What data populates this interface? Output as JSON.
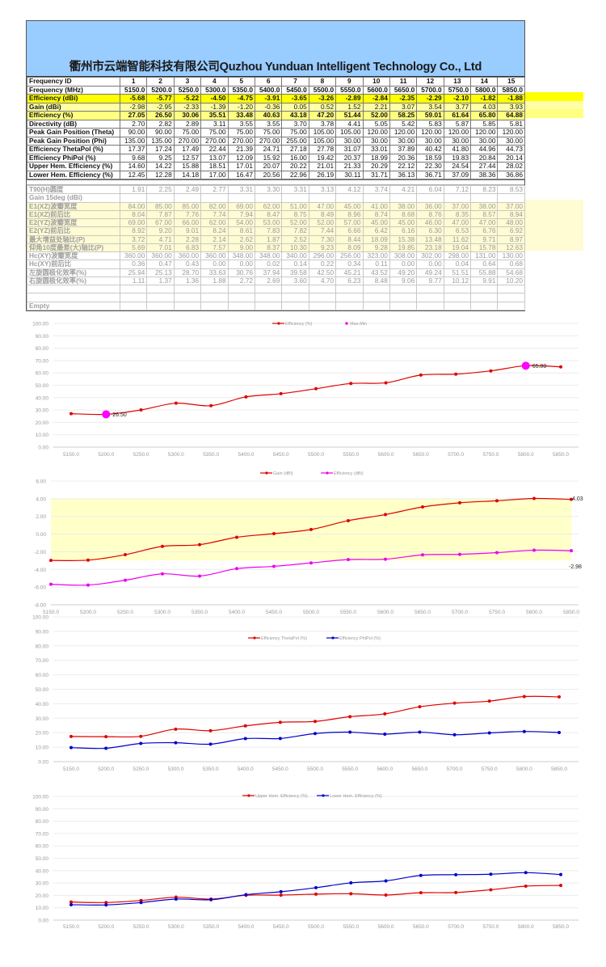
{
  "title": "衢州市云端智能科技有限公司Quzhou Yunduan Intelligent Technology Co., Ltd",
  "upper_table": [
    {
      "label": "Frequency ID",
      "values": [
        "1",
        "2",
        "3",
        "4",
        "5",
        "6",
        "7",
        "8",
        "9",
        "10",
        "11",
        "12",
        "13",
        "14",
        "15"
      ]
    },
    {
      "label": "Frequency  (MHz)",
      "values": [
        "5150.0",
        "5200.0",
        "5250.0",
        "5300.0",
        "5350.0",
        "5400.0",
        "5450.0",
        "5500.0",
        "5550.0",
        "5600.0",
        "5650.0",
        "5700.0",
        "5750.0",
        "5800.0",
        "5850.0"
      ]
    },
    {
      "label": "Efficiency (dBi)",
      "values": [
        "-5.68",
        "-5.77",
        "-5.22",
        "-4.50",
        "-4.75",
        "-3.91",
        "-3.65",
        "-3.26",
        "-2.89",
        "-2.84",
        "-2.35",
        "-2.29",
        "-2.10",
        "-1.82",
        "-1.88"
      ]
    },
    {
      "label": "Gain (dBi)",
      "values": [
        "-2.98",
        "-2.95",
        "-2.33",
        "-1.39",
        "-1.20",
        "-0.36",
        "0.05",
        "0.52",
        "1.52",
        "2.21",
        "3.07",
        "3.54",
        "3.77",
        "4.03",
        "3.93"
      ]
    },
    {
      "label": "Efficiency (%)",
      "values": [
        "27.05",
        "26.50",
        "30.06",
        "35.51",
        "33.48",
        "40.63",
        "43.18",
        "47.20",
        "51.44",
        "52.00",
        "58.25",
        "59.01",
        "61.64",
        "65.80",
        "64.88"
      ]
    },
    {
      "label": "Directivity (dB)",
      "values": [
        "2.70",
        "2.82",
        "2.89",
        "3.11",
        "3.55",
        "3.55",
        "3.70",
        "3.78",
        "4.41",
        "5.05",
        "5.42",
        "5.83",
        "5.87",
        "5.85",
        "5.81"
      ]
    },
    {
      "label": "Peak Gain Position (Theta)",
      "values": [
        "90.00",
        "90.00",
        "75.00",
        "75.00",
        "75.00",
        "75.00",
        "75.00",
        "105.00",
        "105.00",
        "120.00",
        "120.00",
        "120.00",
        "120.00",
        "120.00",
        "120.00"
      ]
    },
    {
      "label": "Peak Gain Position (Phi)",
      "values": [
        "135.00",
        "135.00",
        "270.00",
        "270.00",
        "270.00",
        "270.00",
        "255.00",
        "105.00",
        "30.00",
        "30.00",
        "30.00",
        "30.00",
        "30.00",
        "30.00",
        "30.00"
      ]
    },
    {
      "label": "Efficiency ThetaPol (%)",
      "values": [
        "17.37",
        "17.24",
        "17.49",
        "22.44",
        "21.39",
        "24.71",
        "27.18",
        "27.78",
        "31.07",
        "33.01",
        "37.89",
        "40.42",
        "41.80",
        "44.96",
        "44.73"
      ]
    },
    {
      "label": "Efficiency PhiPol (%)",
      "values": [
        "9.68",
        "9.25",
        "12.57",
        "13.07",
        "12.09",
        "15.92",
        "16.00",
        "19.42",
        "20.37",
        "18.99",
        "20.36",
        "18.59",
        "19.83",
        "20.84",
        "20.14"
      ]
    },
    {
      "label": "Upper Hem. Efficiency (%)",
      "values": [
        "14.60",
        "14.22",
        "15.88",
        "18.51",
        "17.01",
        "20.07",
        "20.22",
        "21.01",
        "21.33",
        "20.29",
        "22.12",
        "22.30",
        "24.54",
        "27.44",
        "28.02"
      ]
    },
    {
      "label": "Lower Hem. Efficiency (%)",
      "values": [
        "12.45",
        "12.28",
        "14.18",
        "17.00",
        "16.47",
        "20.56",
        "22.96",
        "26.19",
        "30.11",
        "31.71",
        "36.13",
        "36.71",
        "37.09",
        "38.36",
        "36.86"
      ]
    }
  ],
  "lower_table": [
    {
      "label": "T90(H)圆度",
      "values": [
        "1.91",
        "2.25",
        "2.49",
        "2.77",
        "3.31",
        "3.30",
        "3.31",
        "3.13",
        "4.12",
        "3.74",
        "4.21",
        "6.04",
        "7.12",
        "8.23",
        "8.53"
      ]
    },
    {
      "label": "Gain 15deg (dBi)",
      "values": [
        "",
        "",
        "",
        "",
        "",
        "",
        "",
        "",
        "",
        "",
        "",
        "",
        "",
        "",
        ""
      ]
    },
    {
      "label": "E1(XZ)波瓣宽度",
      "values": [
        "84.00",
        "85.00",
        "85.00",
        "82.00",
        "69.00",
        "62.00",
        "51.00",
        "47.00",
        "45.00",
        "41.00",
        "38.00",
        "36.00",
        "37.00",
        "38.00",
        "37.00"
      ]
    },
    {
      "label": "E1(XZ)前后比",
      "values": [
        "8.04",
        "7.87",
        "7.76",
        "7.74",
        "7.94",
        "8.47",
        "8.75",
        "8.49",
        "8.96",
        "8.74",
        "8.68",
        "8.76",
        "8.35",
        "8.57",
        "8.94"
      ]
    },
    {
      "label": "E2(YZ)波瓣宽度",
      "values": [
        "69.00",
        "67.00",
        "66.00",
        "62.00",
        "54.00",
        "53.00",
        "52.00",
        "52.00",
        "57.00",
        "45.00",
        "45.00",
        "46.00",
        "47.00",
        "47.00",
        "48.00"
      ]
    },
    {
      "label": "E2(YZ)前后比",
      "values": [
        "8.92",
        "9.20",
        "9.01",
        "8.24",
        "8.61",
        "7.83",
        "7.82",
        "7.44",
        "6.66",
        "6.42",
        "6.16",
        "6.30",
        "6.53",
        "6.76",
        "6.92"
      ]
    },
    {
      "label": "最大增益处轴比(P)",
      "values": [
        "3.72",
        "4.71",
        "2.28",
        "2.14",
        "2.62",
        "1.87",
        "2.52",
        "7.30",
        "8.44",
        "18.09",
        "15.38",
        "13.48",
        "11.62",
        "9.71",
        "8.97"
      ]
    },
    {
      "label": "仰角10度最差(大)轴比(P)",
      "values": [
        "5.69",
        "7.01",
        "6.83",
        "7.57",
        "9.00",
        "8.37",
        "10.30",
        "9.23",
        "8.09",
        "9.28",
        "19.85",
        "23.18",
        "19.04",
        "15.78",
        "12.63"
      ]
    },
    {
      "label": "Hc(XY)波瓣宽度",
      "values": [
        "360.00",
        "360.00",
        "360.00",
        "360.00",
        "348.00",
        "348.00",
        "340.00",
        "296.00",
        "256.00",
        "323.00",
        "308.00",
        "302.00",
        "298.00",
        "131.00",
        "130.00"
      ]
    },
    {
      "label": "Hc(XY)前后比",
      "values": [
        "0.36",
        "0.47",
        "0.43",
        "0.00",
        "0.00",
        "0.02",
        "0.14",
        "0.22",
        "0.34",
        "0.11",
        "0.00",
        "0.00",
        "0.04",
        "0.64",
        "0.68"
      ]
    },
    {
      "label": "左旋圆极化效率(%)",
      "values": [
        "25.94",
        "25.13",
        "28.70",
        "33.63",
        "30.76",
        "37.94",
        "39.58",
        "42.50",
        "45.21",
        "43.52",
        "49.20",
        "49.24",
        "51.51",
        "55.88",
        "54.68"
      ]
    },
    {
      "label": "右旋圆极化效率(%)",
      "values": [
        "1.11",
        "1.37",
        "1.36",
        "1.88",
        "2.72",
        "2.69",
        "3.60",
        "4.70",
        "6.23",
        "8.48",
        "9.06",
        "9.77",
        "10.12",
        "9.91",
        "10.20"
      ]
    },
    {
      "label": "",
      "values": [
        "",
        "",
        "",
        "",
        "",
        "",
        "",
        "",
        "",
        "",
        "",
        "",
        "",
        "",
        ""
      ]
    },
    {
      "label": "",
      "values": [
        "",
        "",
        "",
        "",
        "",
        "",
        "",
        "",
        "",
        "",
        "",
        "",
        "",
        "",
        ""
      ]
    },
    {
      "label": "Empty",
      "values": [
        "",
        "",
        "",
        "",
        "",
        "",
        "",
        "",
        "",
        "",
        "",
        "",
        "",
        "",
        ""
      ]
    }
  ],
  "chart_data": [
    {
      "type": "line",
      "title": "",
      "categories": [
        "5150.0",
        "5200.0",
        "5250.0",
        "5300.0",
        "5350.0",
        "5400.0",
        "5450.0",
        "5500.0",
        "5550.0",
        "5600.0",
        "5650.0",
        "5700.0",
        "5750.0",
        "5800.0",
        "5850.0"
      ],
      "ylim": [
        0,
        100
      ],
      "y_step": 10,
      "y_decimals": 2,
      "series": [
        {
          "name": "Efficiency (%)",
          "color": "#e00000",
          "values": [
            27.05,
            26.5,
            30.06,
            35.51,
            33.48,
            40.63,
            43.18,
            47.2,
            51.44,
            52.0,
            58.25,
            59.01,
            61.64,
            65.8,
            64.88
          ]
        }
      ],
      "maxmin": {
        "name": "Max-Min",
        "color": "#ff00ff",
        "points": [
          {
            "x": "5200.0",
            "y": 26.5,
            "label": "26.50"
          },
          {
            "x": "5800.0",
            "y": 65.8,
            "label": "65.80"
          }
        ]
      },
      "legend": "top-center"
    },
    {
      "type": "line",
      "title": "",
      "categories": [
        "5150.0",
        "5200.0",
        "5250.0",
        "5300.0",
        "5350.0",
        "5400.0",
        "5450.0",
        "5500.0",
        "5550.0",
        "5600.0",
        "5650.0",
        "5700.0",
        "5750.0",
        "5800.0",
        "5850.0"
      ],
      "ylim": [
        -8,
        6
      ],
      "y_step": 2,
      "y_decimals": 2,
      "series": [
        {
          "name": "Gain (dBi)",
          "color": "#e00000",
          "values": [
            -2.98,
            -2.95,
            -2.33,
            -1.39,
            -1.2,
            -0.36,
            0.05,
            0.52,
            1.52,
            2.21,
            3.07,
            3.54,
            3.77,
            4.03,
            3.93
          ]
        },
        {
          "name": "Efficiency (dBi)",
          "color": "#ee00ee",
          "values": [
            -5.68,
            -5.77,
            -5.22,
            -4.5,
            -4.75,
            -3.91,
            -3.65,
            -3.26,
            -2.89,
            -2.84,
            -2.35,
            -2.29,
            -2.1,
            -1.82,
            -1.88
          ]
        }
      ],
      "band": {
        "min": -2.98,
        "max": 4.03,
        "min_label": "-2.98",
        "max_label": "4.03",
        "color": "#ffffc8"
      },
      "legend": "top-center"
    },
    {
      "type": "line",
      "title": "",
      "categories": [
        "5150.0",
        "5200.0",
        "5250.0",
        "5300.0",
        "5350.0",
        "5400.0",
        "5450.0",
        "5500.0",
        "5550.0",
        "5600.0",
        "5650.0",
        "5700.0",
        "5750.0",
        "5800.0",
        "5850.0"
      ],
      "ylim": [
        0,
        100
      ],
      "y_step": 10,
      "y_decimals": 2,
      "series": [
        {
          "name": "Efficiency ThetaPol (%)",
          "color": "#e00000",
          "values": [
            17.37,
            17.24,
            17.49,
            22.44,
            21.39,
            24.71,
            27.18,
            27.78,
            31.07,
            33.01,
            37.89,
            40.42,
            41.8,
            44.96,
            44.73
          ]
        },
        {
          "name": "Efficiency PhiPol (%)",
          "color": "#0000cc",
          "values": [
            9.68,
            9.25,
            12.57,
            13.07,
            12.09,
            15.92,
            16.0,
            19.42,
            20.37,
            18.99,
            20.36,
            18.59,
            19.83,
            20.84,
            20.14
          ]
        }
      ],
      "legend": "top-center"
    },
    {
      "type": "line",
      "title": "",
      "categories": [
        "5150.0",
        "5200.0",
        "5250.0",
        "5300.0",
        "5350.0",
        "5400.0",
        "5450.0",
        "5500.0",
        "5550.0",
        "5600.0",
        "5650.0",
        "5700.0",
        "5750.0",
        "5800.0",
        "5850.0"
      ],
      "ylim": [
        0,
        100
      ],
      "y_step": 10,
      "y_decimals": 2,
      "series": [
        {
          "name": "Upper Hem. Efficiency (%)",
          "color": "#e00000",
          "values": [
            14.6,
            14.22,
            15.88,
            18.51,
            17.01,
            20.07,
            20.22,
            21.01,
            21.33,
            20.29,
            22.12,
            22.3,
            24.54,
            27.44,
            28.02
          ]
        },
        {
          "name": "Lower Hem. Efficiency (%)",
          "color": "#0000cc",
          "values": [
            12.45,
            12.28,
            14.18,
            17.0,
            16.47,
            20.56,
            22.96,
            26.19,
            30.11,
            31.71,
            36.13,
            36.71,
            37.09,
            38.36,
            36.86
          ]
        }
      ],
      "legend": "top-center"
    }
  ]
}
